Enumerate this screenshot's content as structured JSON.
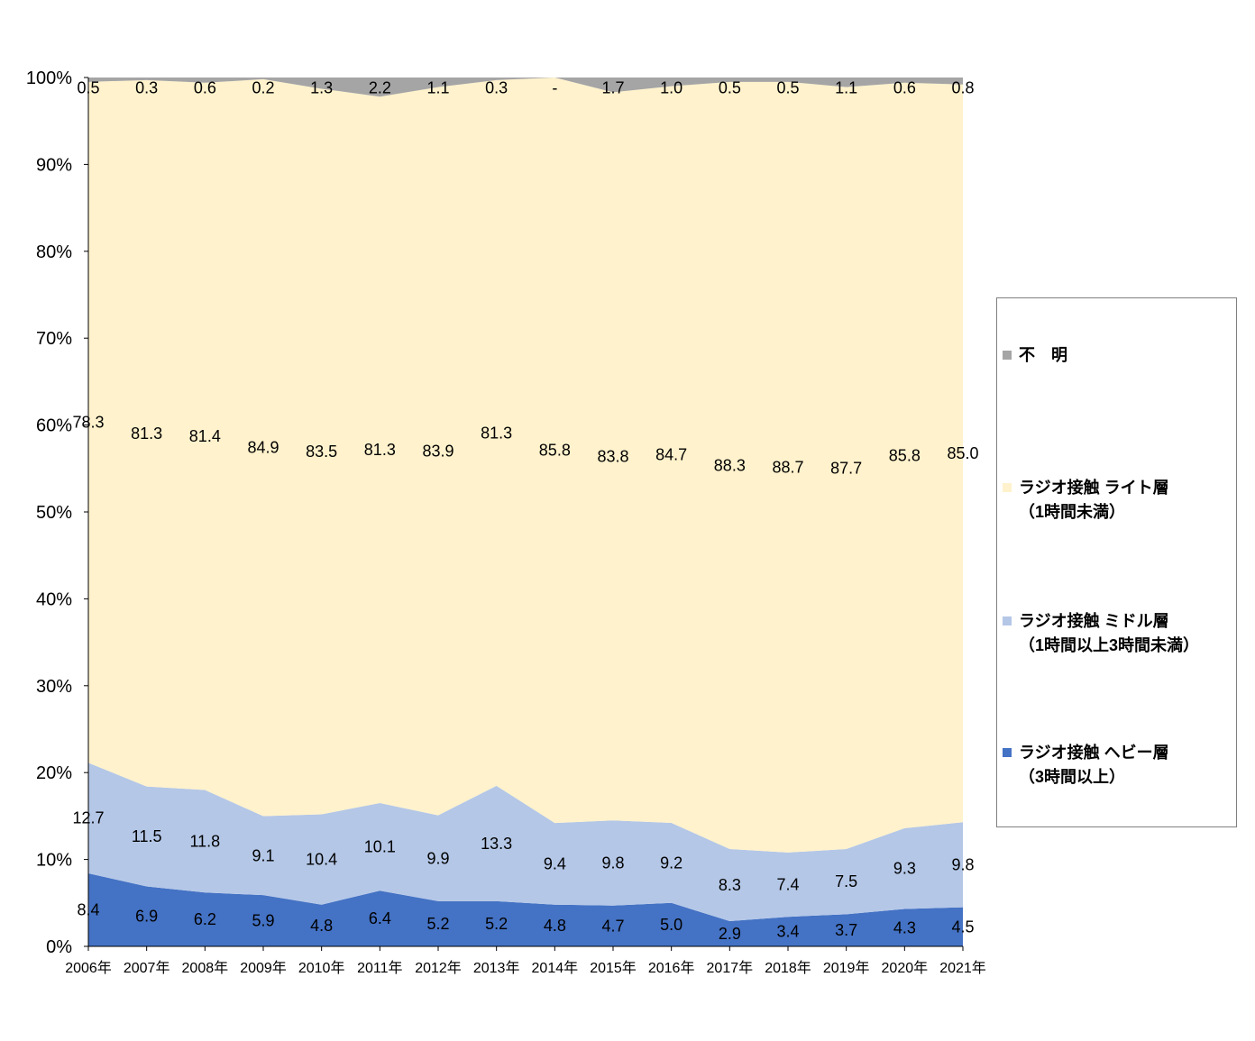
{
  "chart_data": {
    "type": "area",
    "stacked": true,
    "percent": true,
    "categories": [
      "2006年",
      "2007年",
      "2008年",
      "2009年",
      "2010年",
      "2011年",
      "2012年",
      "2013年",
      "2014年",
      "2015年",
      "2016年",
      "2017年",
      "2018年",
      "2019年",
      "2020年",
      "2021年"
    ],
    "yticks": [
      "0%",
      "10%",
      "20%",
      "30%",
      "40%",
      "50%",
      "60%",
      "70%",
      "80%",
      "90%",
      "100%"
    ],
    "ylim": [
      0,
      100
    ],
    "series": [
      {
        "name": "ラジオ接触 ヘビー層",
        "name2": "（3時間以上）",
        "color": "#4472C4",
        "values": [
          8.4,
          6.9,
          6.2,
          5.9,
          4.8,
          6.4,
          5.2,
          5.2,
          4.8,
          4.7,
          5.0,
          2.9,
          3.4,
          3.7,
          4.3,
          4.5
        ],
        "labels": [
          "8.4",
          "6.9",
          "6.2",
          "5.9",
          "4.8",
          "6.4",
          "5.2",
          "5.2",
          "4.8",
          "4.7",
          "5.0",
          "2.9",
          "3.4",
          "3.7",
          "4.3",
          "4.5"
        ]
      },
      {
        "name": "ラジオ接触 ミドル層",
        "name2": "（1時間以上3時間未満）",
        "color": "#B4C7E7",
        "values": [
          12.7,
          11.5,
          11.8,
          9.1,
          10.4,
          10.1,
          9.9,
          13.3,
          9.4,
          9.8,
          9.2,
          8.3,
          7.4,
          7.5,
          9.3,
          9.8
        ],
        "labels": [
          "12.7",
          "11.5",
          "11.8",
          "9.1",
          "10.4",
          "10.1",
          "9.9",
          "13.3",
          "9.4",
          "9.8",
          "9.2",
          "8.3",
          "7.4",
          "7.5",
          "9.3",
          "9.8"
        ]
      },
      {
        "name": "ラジオ接触 ライト層",
        "name2": "（1時間未満）",
        "color": "#FFF2CC",
        "values": [
          78.3,
          81.3,
          81.4,
          84.9,
          83.5,
          81.3,
          83.9,
          81.3,
          85.8,
          83.8,
          84.7,
          88.3,
          88.7,
          87.7,
          85.8,
          85.0
        ],
        "labels": [
          "78.3",
          "81.3",
          "81.4",
          "84.9",
          "83.5",
          "81.3",
          "83.9",
          "81.3",
          "85.8",
          "83.8",
          "84.7",
          "88.3",
          "88.7",
          "87.7",
          "85.8",
          "85.0"
        ]
      },
      {
        "name": "不　明",
        "name2": "",
        "color": "#A5A5A5",
        "values": [
          0.5,
          0.3,
          0.6,
          0.2,
          1.3,
          2.2,
          1.1,
          0.3,
          0,
          1.7,
          1.0,
          0.5,
          0.5,
          1.1,
          0.6,
          0.8
        ],
        "labels": [
          "0.5",
          "0.3",
          "0.6",
          "0.2",
          "1.3",
          "2.2",
          "1.1",
          "0.3",
          "-",
          "1.7",
          "1.0",
          "0.5",
          "0.5",
          "1.1",
          "0.6",
          "0.8"
        ]
      }
    ],
    "legend_order": [
      3,
      2,
      1,
      0
    ],
    "legend_position": "right"
  }
}
